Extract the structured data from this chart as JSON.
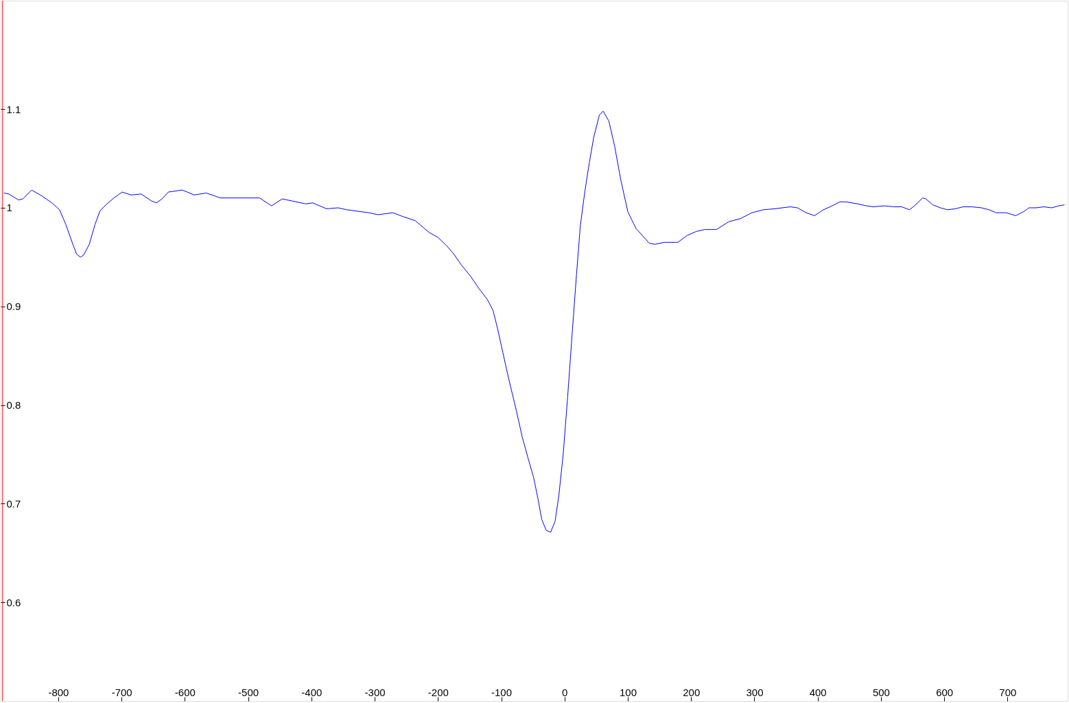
{
  "chart_data": {
    "type": "line",
    "x": [
      -886,
      -878,
      -863,
      -856,
      -842,
      -826,
      -810,
      -798,
      -788,
      -777,
      -771,
      -765,
      -760,
      -751,
      -742,
      -734,
      -723,
      -712,
      -699,
      -685,
      -669,
      -653,
      -645,
      -636,
      -626,
      -604,
      -585,
      -566,
      -544,
      -506,
      -482,
      -463,
      -446,
      -409,
      -398,
      -376,
      -358,
      -344,
      -309,
      -295,
      -271,
      -255,
      -236,
      -214,
      -200,
      -187,
      -176,
      -163,
      -149,
      -135,
      -122,
      -113,
      -106,
      -97,
      -88,
      -76,
      -67,
      -58,
      -49,
      -42,
      -36,
      -29,
      -22,
      -15,
      -9,
      -2,
      5,
      12,
      19,
      25,
      32,
      39,
      46,
      55,
      61,
      70,
      79,
      89,
      100,
      113,
      134,
      143,
      158,
      179,
      194,
      208,
      222,
      240,
      260,
      278,
      296,
      314,
      332,
      344,
      357,
      368,
      382,
      395,
      409,
      423,
      435,
      445,
      463,
      477,
      488,
      506,
      520,
      533,
      545,
      553,
      566,
      571,
      582,
      594,
      605,
      617,
      630,
      644,
      659,
      671,
      682,
      698,
      713,
      725,
      734,
      745,
      757,
      770,
      781,
      790
    ],
    "series": [
      {
        "color": "#0000ff",
        "values": [
          1.015,
          1.014,
          1.008,
          1.009,
          1.018,
          1.012,
          1.005,
          0.998,
          0.983,
          0.963,
          0.953,
          0.95,
          0.952,
          0.963,
          0.983,
          0.997,
          1.004,
          1.01,
          1.016,
          1.013,
          1.014,
          1.007,
          1.005,
          1.009,
          1.016,
          1.018,
          1.013,
          1.015,
          1.01,
          1.01,
          1.01,
          1.002,
          1.009,
          1.004,
          1.005,
          0.999,
          1.0,
          0.998,
          0.995,
          0.993,
          0.995,
          0.991,
          0.987,
          0.975,
          0.97,
          0.962,
          0.954,
          0.942,
          0.931,
          0.918,
          0.907,
          0.896,
          0.878,
          0.852,
          0.826,
          0.794,
          0.768,
          0.747,
          0.727,
          0.705,
          0.684,
          0.673,
          0.671,
          0.682,
          0.708,
          0.751,
          0.809,
          0.872,
          0.933,
          0.982,
          1.016,
          1.045,
          1.071,
          1.094,
          1.098,
          1.088,
          1.063,
          1.028,
          0.996,
          0.979,
          0.964,
          0.963,
          0.965,
          0.965,
          0.972,
          0.976,
          0.978,
          0.978,
          0.986,
          0.989,
          0.995,
          0.998,
          0.999,
          1.0,
          1.001,
          1.0,
          0.995,
          0.992,
          0.998,
          1.002,
          1.006,
          1.006,
          1.004,
          1.002,
          1.001,
          1.002,
          1.001,
          1.001,
          0.998,
          1.002,
          1.01,
          1.009,
          1.003,
          1.0,
          0.998,
          0.999,
          1.001,
          1.001,
          1.0,
          0.998,
          0.995,
          0.995,
          0.992,
          0.996,
          1.0,
          1.0,
          1.001,
          1.0,
          1.002,
          1.003
        ]
      }
    ],
    "xlim": [
      -891,
      795
    ],
    "xticks": [
      -800,
      -700,
      -600,
      -500,
      -400,
      -300,
      -200,
      -100,
      0,
      100,
      200,
      300,
      400,
      500,
      600,
      700
    ],
    "ylim": [
      0.5,
      1.21
    ],
    "yticks": [
      0.6,
      0.7,
      0.8,
      0.9,
      1,
      1.1
    ],
    "ref_lines": [
      {
        "axis": "x",
        "value": -888,
        "color": "#ff0000"
      }
    ],
    "line_style": "solid"
  }
}
